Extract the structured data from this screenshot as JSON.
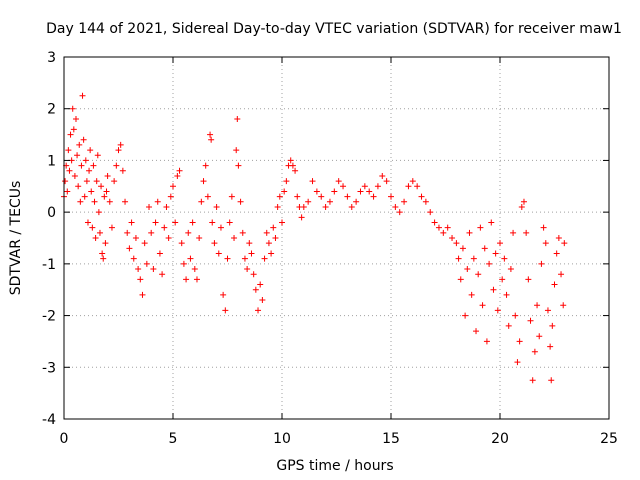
{
  "chart_data": {
    "type": "scatter",
    "title": "Day 144 of 2021, Sidereal Day-to-day VTEC variation (SDTVAR) for receiver maw1",
    "xlabel": "GPS time / hours",
    "ylabel": "SDTVAR / TECUs",
    "xlim": [
      0,
      25
    ],
    "ylim": [
      -4,
      3
    ],
    "xticks": [
      "0",
      "5",
      "10",
      "15",
      "20",
      "25"
    ],
    "yticks": [
      "-4",
      "-3",
      "-2",
      "-1",
      "0",
      "1",
      "2",
      "3"
    ],
    "grid": true,
    "marker": "plus",
    "color": "#ff0000",
    "series": [
      {
        "name": "SDTVAR",
        "points": [
          [
            0.0,
            0.3
          ],
          [
            0.05,
            0.6
          ],
          [
            0.1,
            0.9
          ],
          [
            0.15,
            0.4
          ],
          [
            0.2,
            1.2
          ],
          [
            0.25,
            0.8
          ],
          [
            0.3,
            1.5
          ],
          [
            0.35,
            1.0
          ],
          [
            0.4,
            2.0
          ],
          [
            0.45,
            1.6
          ],
          [
            0.5,
            0.7
          ],
          [
            0.55,
            1.8
          ],
          [
            0.6,
            1.1
          ],
          [
            0.65,
            0.5
          ],
          [
            0.7,
            1.3
          ],
          [
            0.75,
            0.2
          ],
          [
            0.8,
            0.9
          ],
          [
            0.85,
            2.25
          ],
          [
            0.9,
            1.4
          ],
          [
            0.95,
            0.3
          ],
          [
            1.0,
            1.0
          ],
          [
            1.05,
            0.6
          ],
          [
            1.1,
            -0.2
          ],
          [
            1.15,
            0.8
          ],
          [
            1.2,
            1.2
          ],
          [
            1.25,
            0.4
          ],
          [
            1.3,
            -0.3
          ],
          [
            1.35,
            0.9
          ],
          [
            1.4,
            0.2
          ],
          [
            1.45,
            -0.5
          ],
          [
            1.5,
            0.6
          ],
          [
            1.55,
            1.1
          ],
          [
            1.6,
            0.0
          ],
          [
            1.65,
            -0.4
          ],
          [
            1.7,
            0.5
          ],
          [
            1.75,
            -0.8
          ],
          [
            1.8,
            -0.9
          ],
          [
            1.85,
            0.3
          ],
          [
            1.9,
            -0.6
          ],
          [
            1.95,
            0.4
          ],
          [
            2.0,
            0.7
          ],
          [
            2.1,
            0.2
          ],
          [
            2.2,
            -0.3
          ],
          [
            2.3,
            0.6
          ],
          [
            2.4,
            0.9
          ],
          [
            2.5,
            1.2
          ],
          [
            2.6,
            1.3
          ],
          [
            2.7,
            0.8
          ],
          [
            2.8,
            0.2
          ],
          [
            2.9,
            -0.4
          ],
          [
            3.0,
            -0.7
          ],
          [
            3.1,
            -0.2
          ],
          [
            3.2,
            -0.9
          ],
          [
            3.3,
            -0.5
          ],
          [
            3.4,
            -1.1
          ],
          [
            3.5,
            -1.3
          ],
          [
            3.6,
            -1.6
          ],
          [
            3.7,
            -0.6
          ],
          [
            3.8,
            -1.0
          ],
          [
            3.9,
            0.1
          ],
          [
            4.0,
            -0.4
          ],
          [
            4.1,
            -1.1
          ],
          [
            4.2,
            -0.2
          ],
          [
            4.3,
            0.2
          ],
          [
            4.4,
            -0.8
          ],
          [
            4.5,
            -1.2
          ],
          [
            4.6,
            -0.3
          ],
          [
            4.7,
            0.1
          ],
          [
            4.8,
            -0.5
          ],
          [
            4.9,
            0.3
          ],
          [
            5.0,
            0.5
          ],
          [
            5.1,
            -0.2
          ],
          [
            5.2,
            0.7
          ],
          [
            5.3,
            0.8
          ],
          [
            5.4,
            -0.6
          ],
          [
            5.5,
            -1.0
          ],
          [
            5.6,
            -1.3
          ],
          [
            5.7,
            -0.4
          ],
          [
            5.8,
            -0.9
          ],
          [
            5.9,
            -0.2
          ],
          [
            6.0,
            -1.1
          ],
          [
            6.1,
            -1.3
          ],
          [
            6.2,
            -0.5
          ],
          [
            6.3,
            0.2
          ],
          [
            6.4,
            0.6
          ],
          [
            6.5,
            0.9
          ],
          [
            6.6,
            0.3
          ],
          [
            6.7,
            1.5
          ],
          [
            6.75,
            1.4
          ],
          [
            6.8,
            -0.2
          ],
          [
            6.9,
            -0.6
          ],
          [
            7.0,
            0.1
          ],
          [
            7.1,
            -0.8
          ],
          [
            7.2,
            -0.3
          ],
          [
            7.3,
            -1.6
          ],
          [
            7.4,
            -1.9
          ],
          [
            7.5,
            -0.9
          ],
          [
            7.6,
            -0.2
          ],
          [
            7.7,
            0.3
          ],
          [
            7.8,
            -0.5
          ],
          [
            7.9,
            1.2
          ],
          [
            7.95,
            1.8
          ],
          [
            8.0,
            0.9
          ],
          [
            8.1,
            0.2
          ],
          [
            8.2,
            -0.4
          ],
          [
            8.3,
            -0.9
          ],
          [
            8.4,
            -1.1
          ],
          [
            8.5,
            -0.6
          ],
          [
            8.6,
            -0.8
          ],
          [
            8.7,
            -1.2
          ],
          [
            8.8,
            -1.5
          ],
          [
            8.9,
            -1.9
          ],
          [
            9.0,
            -1.4
          ],
          [
            9.1,
            -1.7
          ],
          [
            9.2,
            -0.9
          ],
          [
            9.3,
            -0.4
          ],
          [
            9.4,
            -0.6
          ],
          [
            9.5,
            -0.8
          ],
          [
            9.6,
            -0.3
          ],
          [
            9.7,
            -0.5
          ],
          [
            9.8,
            0.1
          ],
          [
            9.9,
            0.3
          ],
          [
            10.0,
            -0.2
          ],
          [
            10.1,
            0.4
          ],
          [
            10.2,
            0.6
          ],
          [
            10.3,
            0.9
          ],
          [
            10.4,
            1.0
          ],
          [
            10.5,
            0.9
          ],
          [
            10.6,
            0.8
          ],
          [
            10.7,
            0.3
          ],
          [
            10.8,
            0.1
          ],
          [
            10.9,
            -0.1
          ],
          [
            11.0,
            0.1
          ],
          [
            11.2,
            0.2
          ],
          [
            11.4,
            0.6
          ],
          [
            11.6,
            0.4
          ],
          [
            11.8,
            0.3
          ],
          [
            12.0,
            0.1
          ],
          [
            12.2,
            0.2
          ],
          [
            12.4,
            0.4
          ],
          [
            12.6,
            0.6
          ],
          [
            12.8,
            0.5
          ],
          [
            13.0,
            0.3
          ],
          [
            13.2,
            0.1
          ],
          [
            13.4,
            0.2
          ],
          [
            13.6,
            0.4
          ],
          [
            13.8,
            0.5
          ],
          [
            14.0,
            0.4
          ],
          [
            14.2,
            0.3
          ],
          [
            14.4,
            0.5
          ],
          [
            14.6,
            0.7
          ],
          [
            14.8,
            0.6
          ],
          [
            15.0,
            0.3
          ],
          [
            15.2,
            0.1
          ],
          [
            15.4,
            0.0
          ],
          [
            15.6,
            0.2
          ],
          [
            15.8,
            0.5
          ],
          [
            16.0,
            0.6
          ],
          [
            16.2,
            0.5
          ],
          [
            16.4,
            0.3
          ],
          [
            16.6,
            0.2
          ],
          [
            16.8,
            0.0
          ],
          [
            17.0,
            -0.2
          ],
          [
            17.2,
            -0.3
          ],
          [
            17.4,
            -0.4
          ],
          [
            17.6,
            -0.3
          ],
          [
            17.8,
            -0.5
          ],
          [
            18.0,
            -0.6
          ],
          [
            18.1,
            -0.9
          ],
          [
            18.2,
            -1.3
          ],
          [
            18.3,
            -0.7
          ],
          [
            18.4,
            -2.0
          ],
          [
            18.5,
            -1.1
          ],
          [
            18.6,
            -0.4
          ],
          [
            18.7,
            -1.6
          ],
          [
            18.8,
            -0.9
          ],
          [
            18.9,
            -2.3
          ],
          [
            19.0,
            -1.2
          ],
          [
            19.1,
            -0.3
          ],
          [
            19.2,
            -1.8
          ],
          [
            19.3,
            -0.7
          ],
          [
            19.4,
            -2.5
          ],
          [
            19.5,
            -1.0
          ],
          [
            19.6,
            -0.2
          ],
          [
            19.7,
            -1.5
          ],
          [
            19.8,
            -0.8
          ],
          [
            19.9,
            -1.9
          ],
          [
            20.0,
            -0.6
          ],
          [
            20.1,
            -1.3
          ],
          [
            20.2,
            -0.9
          ],
          [
            20.3,
            -1.6
          ],
          [
            20.4,
            -2.2
          ],
          [
            20.5,
            -1.1
          ],
          [
            20.6,
            -0.4
          ],
          [
            20.7,
            -2.0
          ],
          [
            20.8,
            -2.9
          ],
          [
            20.9,
            -2.5
          ],
          [
            21.0,
            0.1
          ],
          [
            21.1,
            0.2
          ],
          [
            21.2,
            -0.4
          ],
          [
            21.3,
            -1.3
          ],
          [
            21.4,
            -2.1
          ],
          [
            21.5,
            -3.25
          ],
          [
            21.6,
            -2.7
          ],
          [
            21.7,
            -1.8
          ],
          [
            21.8,
            -2.4
          ],
          [
            21.9,
            -1.0
          ],
          [
            22.0,
            -0.3
          ],
          [
            22.1,
            -0.6
          ],
          [
            22.2,
            -1.9
          ],
          [
            22.3,
            -2.6
          ],
          [
            22.35,
            -3.25
          ],
          [
            22.4,
            -2.2
          ],
          [
            22.5,
            -1.4
          ],
          [
            22.6,
            -0.8
          ],
          [
            22.7,
            -0.5
          ],
          [
            22.8,
            -1.2
          ],
          [
            22.9,
            -1.8
          ],
          [
            22.95,
            -0.6
          ]
        ]
      }
    ]
  }
}
